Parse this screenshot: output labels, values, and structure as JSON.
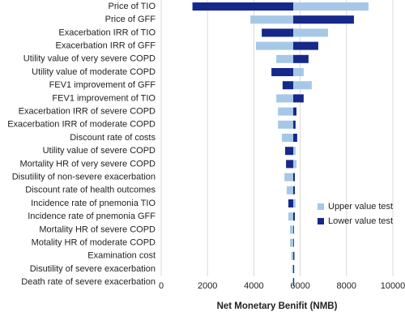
{
  "chart_data": {
    "type": "tornado",
    "x_label": "Net Monetary Benifit (NMB)",
    "categories": [
      "Price of TIO",
      "Price of GFF",
      "Exacerbation IRR of TIO",
      "Exacerbation IRR of GFF",
      "Utility value of very severe COPD",
      "Utility value of moderate COPD",
      "FEV1 improvement of GFF",
      "FEV1 improvement of TIO",
      "Exacerbation IRR of severe COPD",
      "Exacerbation IRR of moderate COPD",
      "Discount rate of costs",
      "Utility value of severe COPD",
      "Mortality HR of very severe COPD",
      "Disutility of non-severe exacerbation",
      "Discount rate of health outcomes",
      "Incidence rate of pnemonia TIO",
      "Incidence rate of pnemonia GFF",
      "Mortality HR of severe COPD",
      "Motality HR of moderate COPD",
      "Examination cost",
      "Disutility of severe exacerbation",
      "Death rate of severe exacerbation"
    ],
    "base_value": 5700,
    "series": [
      {
        "name": "Upper value test",
        "color": "#a6c8e6",
        "values": [
          8950,
          3850,
          7200,
          4090,
          4970,
          6150,
          6500,
          4970,
          5040,
          5040,
          5210,
          5800,
          5840,
          5320,
          5420,
          5800,
          5490,
          5560,
          5560,
          5620,
          5650,
          5660
        ]
      },
      {
        "name": "Lower value test",
        "color": "#16288a",
        "values": [
          1350,
          8320,
          4340,
          6780,
          6360,
          4760,
          5240,
          6150,
          5840,
          5800,
          5870,
          5350,
          5390,
          5770,
          5770,
          5490,
          5770,
          5730,
          5730,
          5750,
          5740,
          5740
        ]
      }
    ],
    "xlim": [
      0,
      10000
    ],
    "xticks": [
      0,
      2000,
      4000,
      6000,
      8000,
      10000
    ],
    "grid": true,
    "legend": "right"
  }
}
